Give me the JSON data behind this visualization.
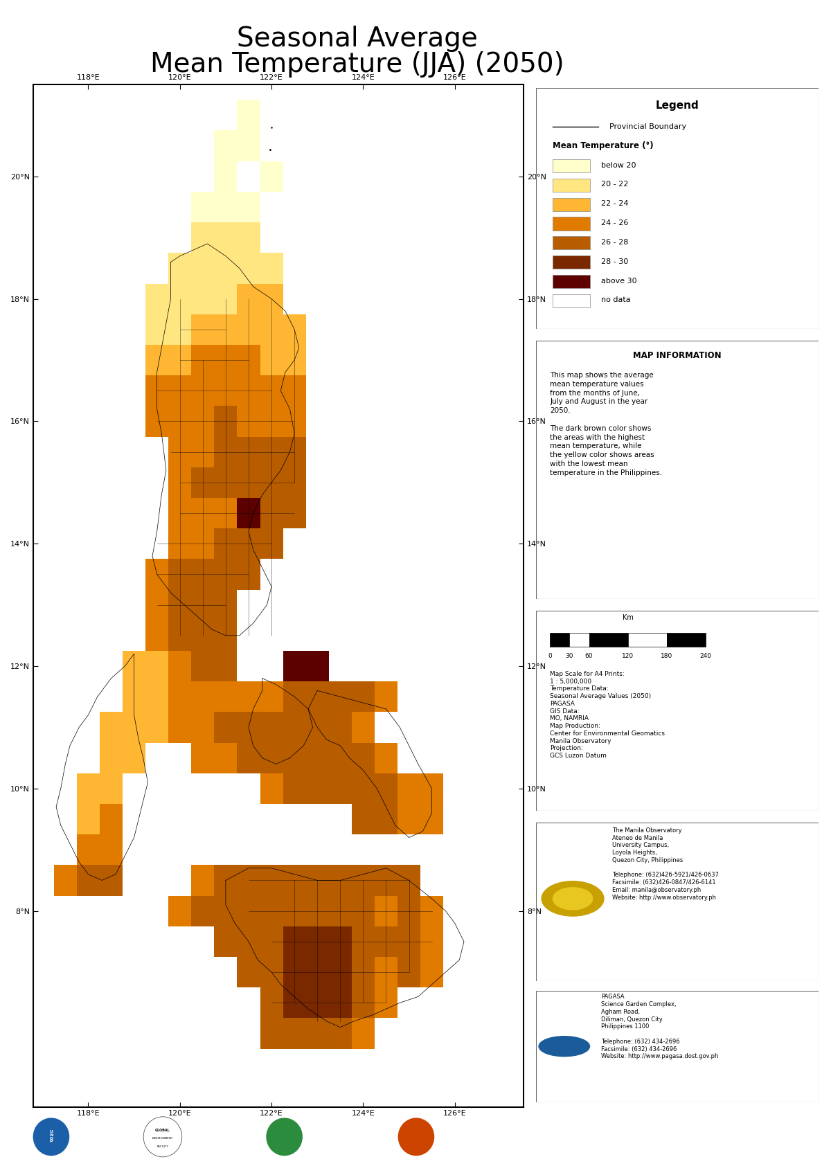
{
  "title_line1": "Seasonal Average",
  "title_line2": "Mean Temperature (JJA) (2050)",
  "title_fontsize": 28,
  "background_color": "#ffffff",
  "map_bg_color": "#ffffff",
  "temp_colors": {
    "below20": "#ffffcc",
    "20_22": "#ffe680",
    "22_24": "#ffb733",
    "24_26": "#e07b00",
    "26_28": "#b85c00",
    "28_30": "#7a2800",
    "above30": "#5c0000"
  },
  "legend_items": [
    [
      "#ffffcc",
      "below 20"
    ],
    [
      "#ffe680",
      "20 - 22"
    ],
    [
      "#ffb733",
      "22 - 24"
    ],
    [
      "#e07b00",
      "24 - 26"
    ],
    [
      "#b85c00",
      "26 - 28"
    ],
    [
      "#7a2800",
      "28 - 30"
    ],
    [
      "#5c0000",
      "above 30"
    ],
    [
      "#ffffff",
      "no data"
    ]
  ],
  "lon_ticks": [
    118,
    120,
    122,
    124,
    126
  ],
  "lat_ticks": [
    8,
    10,
    12,
    14,
    16,
    18,
    20
  ],
  "grid_cells": [
    [
      121.5,
      21.0,
      "below20"
    ],
    [
      121.0,
      20.5,
      "below20"
    ],
    [
      121.5,
      20.5,
      "below20"
    ],
    [
      122.0,
      20.0,
      "below20"
    ],
    [
      121.0,
      20.0,
      "below20"
    ],
    [
      120.5,
      19.5,
      "below20"
    ],
    [
      121.0,
      19.5,
      "below20"
    ],
    [
      121.5,
      19.5,
      "below20"
    ],
    [
      120.5,
      19.0,
      "20_22"
    ],
    [
      121.0,
      19.0,
      "20_22"
    ],
    [
      121.5,
      19.0,
      "20_22"
    ],
    [
      120.0,
      18.5,
      "20_22"
    ],
    [
      120.5,
      18.5,
      "20_22"
    ],
    [
      121.0,
      18.5,
      "20_22"
    ],
    [
      121.5,
      18.5,
      "20_22"
    ],
    [
      122.0,
      18.5,
      "20_22"
    ],
    [
      119.5,
      18.0,
      "20_22"
    ],
    [
      120.0,
      18.0,
      "20_22"
    ],
    [
      120.5,
      18.0,
      "20_22"
    ],
    [
      121.0,
      18.0,
      "20_22"
    ],
    [
      121.5,
      18.0,
      "22_24"
    ],
    [
      122.0,
      18.0,
      "22_24"
    ],
    [
      119.5,
      17.5,
      "20_22"
    ],
    [
      120.0,
      17.5,
      "20_22"
    ],
    [
      120.5,
      17.5,
      "22_24"
    ],
    [
      121.0,
      17.5,
      "22_24"
    ],
    [
      121.5,
      17.5,
      "22_24"
    ],
    [
      122.0,
      17.5,
      "22_24"
    ],
    [
      122.5,
      17.5,
      "22_24"
    ],
    [
      119.5,
      17.0,
      "22_24"
    ],
    [
      120.0,
      17.0,
      "22_24"
    ],
    [
      120.5,
      17.0,
      "24_26"
    ],
    [
      121.0,
      17.0,
      "24_26"
    ],
    [
      121.5,
      17.0,
      "24_26"
    ],
    [
      122.0,
      17.0,
      "22_24"
    ],
    [
      122.5,
      17.0,
      "22_24"
    ],
    [
      119.5,
      16.5,
      "24_26"
    ],
    [
      120.0,
      16.5,
      "24_26"
    ],
    [
      120.5,
      16.5,
      "24_26"
    ],
    [
      121.0,
      16.5,
      "24_26"
    ],
    [
      121.5,
      16.5,
      "24_26"
    ],
    [
      122.0,
      16.5,
      "24_26"
    ],
    [
      122.5,
      16.5,
      "24_26"
    ],
    [
      119.5,
      16.0,
      "24_26"
    ],
    [
      120.0,
      16.0,
      "24_26"
    ],
    [
      120.5,
      16.0,
      "24_26"
    ],
    [
      121.0,
      16.0,
      "26_28"
    ],
    [
      121.5,
      16.0,
      "24_26"
    ],
    [
      122.0,
      16.0,
      "24_26"
    ],
    [
      122.5,
      16.0,
      "24_26"
    ],
    [
      120.0,
      15.5,
      "24_26"
    ],
    [
      120.5,
      15.5,
      "24_26"
    ],
    [
      121.0,
      15.5,
      "26_28"
    ],
    [
      121.5,
      15.5,
      "26_28"
    ],
    [
      122.0,
      15.5,
      "26_28"
    ],
    [
      122.5,
      15.5,
      "26_28"
    ],
    [
      120.0,
      15.0,
      "24_26"
    ],
    [
      120.5,
      15.0,
      "26_28"
    ],
    [
      121.0,
      15.0,
      "26_28"
    ],
    [
      121.5,
      15.0,
      "26_28"
    ],
    [
      122.0,
      15.0,
      "26_28"
    ],
    [
      122.5,
      15.0,
      "26_28"
    ],
    [
      120.0,
      14.5,
      "24_26"
    ],
    [
      120.5,
      14.5,
      "24_26"
    ],
    [
      121.0,
      14.5,
      "24_26"
    ],
    [
      121.5,
      14.5,
      "above30"
    ],
    [
      122.0,
      14.5,
      "26_28"
    ],
    [
      122.5,
      14.5,
      "26_28"
    ],
    [
      120.0,
      14.0,
      "24_26"
    ],
    [
      120.5,
      14.0,
      "24_26"
    ],
    [
      121.0,
      14.0,
      "26_28"
    ],
    [
      121.5,
      14.0,
      "26_28"
    ],
    [
      122.0,
      14.0,
      "26_28"
    ],
    [
      119.5,
      13.5,
      "24_26"
    ],
    [
      120.0,
      13.5,
      "26_28"
    ],
    [
      120.5,
      13.5,
      "26_28"
    ],
    [
      121.0,
      13.5,
      "26_28"
    ],
    [
      121.5,
      13.5,
      "26_28"
    ],
    [
      119.5,
      13.0,
      "24_26"
    ],
    [
      120.0,
      13.0,
      "26_28"
    ],
    [
      120.5,
      13.0,
      "26_28"
    ],
    [
      121.0,
      13.0,
      "26_28"
    ],
    [
      119.5,
      12.5,
      "24_26"
    ],
    [
      120.0,
      12.5,
      "26_28"
    ],
    [
      120.5,
      12.5,
      "26_28"
    ],
    [
      121.0,
      12.5,
      "26_28"
    ],
    [
      119.0,
      12.0,
      "22_24"
    ],
    [
      119.5,
      12.0,
      "22_24"
    ],
    [
      120.0,
      12.0,
      "24_26"
    ],
    [
      120.5,
      12.0,
      "26_28"
    ],
    [
      121.0,
      12.0,
      "26_28"
    ],
    [
      119.0,
      11.5,
      "22_24"
    ],
    [
      119.5,
      11.5,
      "22_24"
    ],
    [
      120.0,
      11.5,
      "24_26"
    ],
    [
      120.5,
      11.5,
      "24_26"
    ],
    [
      121.0,
      11.5,
      "24_26"
    ],
    [
      121.5,
      11.5,
      "24_26"
    ],
    [
      122.0,
      11.5,
      "24_26"
    ],
    [
      122.5,
      11.5,
      "26_28"
    ],
    [
      123.0,
      11.5,
      "26_28"
    ],
    [
      123.5,
      11.5,
      "26_28"
    ],
    [
      124.0,
      11.5,
      "26_28"
    ],
    [
      124.5,
      11.5,
      "24_26"
    ],
    [
      118.5,
      11.0,
      "22_24"
    ],
    [
      119.0,
      11.0,
      "22_24"
    ],
    [
      119.5,
      11.0,
      "22_24"
    ],
    [
      120.0,
      11.0,
      "24_26"
    ],
    [
      120.5,
      11.0,
      "24_26"
    ],
    [
      121.0,
      11.0,
      "26_28"
    ],
    [
      121.5,
      11.0,
      "26_28"
    ],
    [
      122.0,
      11.0,
      "26_28"
    ],
    [
      122.5,
      11.0,
      "26_28"
    ],
    [
      123.0,
      11.0,
      "26_28"
    ],
    [
      123.5,
      11.0,
      "26_28"
    ],
    [
      124.0,
      11.0,
      "24_26"
    ],
    [
      118.5,
      10.5,
      "22_24"
    ],
    [
      119.0,
      10.5,
      "22_24"
    ],
    [
      120.5,
      10.5,
      "24_26"
    ],
    [
      121.0,
      10.5,
      "24_26"
    ],
    [
      121.5,
      10.5,
      "26_28"
    ],
    [
      122.0,
      10.5,
      "26_28"
    ],
    [
      122.5,
      10.5,
      "26_28"
    ],
    [
      123.0,
      10.5,
      "26_28"
    ],
    [
      123.5,
      10.5,
      "26_28"
    ],
    [
      124.0,
      10.5,
      "26_28"
    ],
    [
      124.5,
      10.5,
      "24_26"
    ],
    [
      118.5,
      10.0,
      "22_24"
    ],
    [
      118.0,
      10.0,
      "22_24"
    ],
    [
      122.0,
      10.0,
      "24_26"
    ],
    [
      122.5,
      10.0,
      "26_28"
    ],
    [
      123.0,
      10.0,
      "26_28"
    ],
    [
      123.5,
      10.0,
      "26_28"
    ],
    [
      124.0,
      10.0,
      "26_28"
    ],
    [
      124.5,
      10.0,
      "26_28"
    ],
    [
      125.0,
      10.0,
      "24_26"
    ],
    [
      125.5,
      10.0,
      "24_26"
    ],
    [
      118.0,
      9.5,
      "22_24"
    ],
    [
      118.5,
      9.5,
      "24_26"
    ],
    [
      124.0,
      9.5,
      "26_28"
    ],
    [
      124.5,
      9.5,
      "26_28"
    ],
    [
      125.0,
      9.5,
      "24_26"
    ],
    [
      125.5,
      9.5,
      "24_26"
    ],
    [
      118.0,
      9.0,
      "24_26"
    ],
    [
      118.5,
      9.0,
      "24_26"
    ],
    [
      117.5,
      8.5,
      "24_26"
    ],
    [
      118.0,
      8.5,
      "26_28"
    ],
    [
      118.5,
      8.5,
      "26_28"
    ],
    [
      120.5,
      8.5,
      "24_26"
    ],
    [
      121.0,
      8.5,
      "26_28"
    ],
    [
      121.5,
      8.5,
      "26_28"
    ],
    [
      122.0,
      8.5,
      "26_28"
    ],
    [
      122.5,
      8.5,
      "26_28"
    ],
    [
      123.0,
      8.5,
      "26_28"
    ],
    [
      123.5,
      8.5,
      "26_28"
    ],
    [
      124.0,
      8.5,
      "26_28"
    ],
    [
      124.5,
      8.5,
      "26_28"
    ],
    [
      125.0,
      8.5,
      "26_28"
    ],
    [
      120.0,
      8.0,
      "24_26"
    ],
    [
      120.5,
      8.0,
      "26_28"
    ],
    [
      121.0,
      8.0,
      "26_28"
    ],
    [
      121.5,
      8.0,
      "26_28"
    ],
    [
      122.0,
      8.0,
      "26_28"
    ],
    [
      122.5,
      8.0,
      "26_28"
    ],
    [
      123.0,
      8.0,
      "26_28"
    ],
    [
      123.5,
      8.0,
      "26_28"
    ],
    [
      124.0,
      8.0,
      "26_28"
    ],
    [
      124.5,
      8.0,
      "24_26"
    ],
    [
      125.0,
      8.0,
      "26_28"
    ],
    [
      125.5,
      8.0,
      "24_26"
    ],
    [
      121.0,
      7.5,
      "26_28"
    ],
    [
      121.5,
      7.5,
      "26_28"
    ],
    [
      122.0,
      7.5,
      "26_28"
    ],
    [
      122.5,
      7.5,
      "28_30"
    ],
    [
      123.0,
      7.5,
      "28_30"
    ],
    [
      123.5,
      7.5,
      "28_30"
    ],
    [
      124.0,
      7.5,
      "26_28"
    ],
    [
      124.5,
      7.5,
      "26_28"
    ],
    [
      125.0,
      7.5,
      "26_28"
    ],
    [
      125.5,
      7.5,
      "24_26"
    ],
    [
      121.5,
      7.0,
      "26_28"
    ],
    [
      122.0,
      7.0,
      "26_28"
    ],
    [
      122.5,
      7.0,
      "28_30"
    ],
    [
      123.0,
      7.0,
      "28_30"
    ],
    [
      123.5,
      7.0,
      "28_30"
    ],
    [
      124.0,
      7.0,
      "26_28"
    ],
    [
      124.5,
      7.0,
      "24_26"
    ],
    [
      125.0,
      7.0,
      "26_28"
    ],
    [
      125.5,
      7.0,
      "24_26"
    ],
    [
      122.0,
      6.5,
      "26_28"
    ],
    [
      122.5,
      6.5,
      "28_30"
    ],
    [
      123.0,
      6.5,
      "28_30"
    ],
    [
      123.5,
      6.5,
      "28_30"
    ],
    [
      124.0,
      6.5,
      "26_28"
    ],
    [
      124.5,
      6.5,
      "24_26"
    ],
    [
      122.0,
      6.0,
      "26_28"
    ],
    [
      122.5,
      6.0,
      "26_28"
    ],
    [
      123.0,
      6.0,
      "26_28"
    ],
    [
      123.5,
      6.0,
      "26_28"
    ],
    [
      124.0,
      6.0,
      "24_26"
    ],
    [
      122.5,
      12.0,
      "above30"
    ],
    [
      123.0,
      12.0,
      "above30"
    ]
  ]
}
